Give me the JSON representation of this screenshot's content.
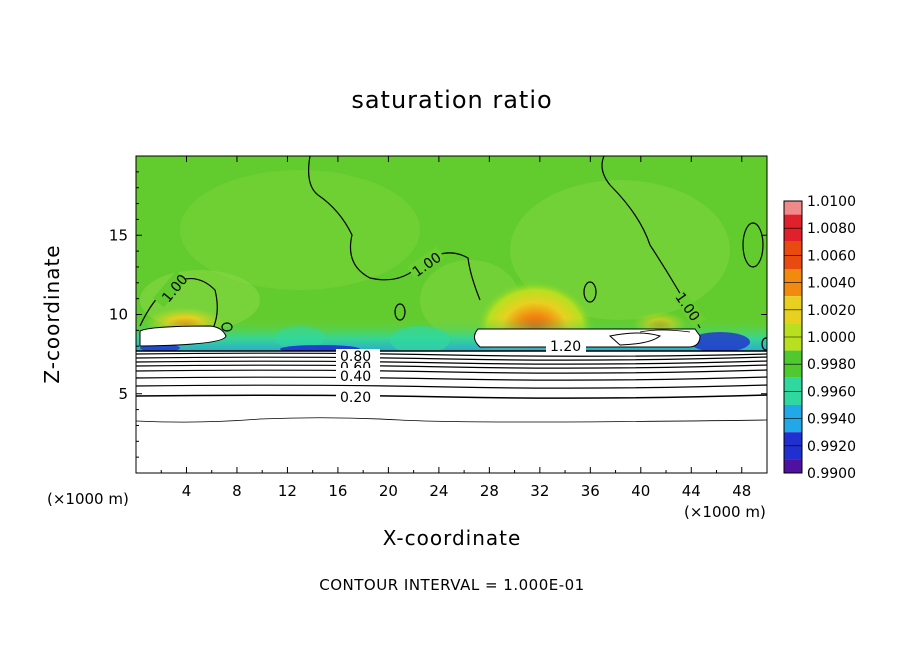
{
  "chart_data": {
    "type": "heatmap",
    "title": "saturation ratio",
    "xlabel": "X-coordinate",
    "ylabel": "Z-coordinate",
    "x_unit_left": "(×1000 m)",
    "x_unit_right": "(×1000 m)",
    "footer": "CONTOUR INTERVAL = 1.000E-01",
    "xlim": [
      0,
      50
    ],
    "ylim": [
      0,
      20
    ],
    "x_ticks": [
      "4",
      "8",
      "12",
      "16",
      "20",
      "24",
      "28",
      "32",
      "36",
      "40",
      "44",
      "48"
    ],
    "y_ticks": [
      "5",
      "10",
      "15"
    ],
    "colorbar": {
      "labels": [
        "1.0100",
        "1.0080",
        "1.0060",
        "1.0040",
        "1.0020",
        "1.0000",
        "0.9980",
        "0.9960",
        "0.9940",
        "0.9920",
        "0.9900"
      ],
      "colors": [
        "#f08a8a",
        "#e0202a",
        "#e84a10",
        "#f28a10",
        "#e8d020",
        "#b8e020",
        "#50c830",
        "#30d8a0",
        "#20a8e8",
        "#2030d0",
        "#5010a0"
      ]
    },
    "contour_labels": [
      "1.00",
      "1.00",
      "1.00",
      "1.20",
      "0.80",
      "0.60",
      "0.40",
      "0.20"
    ]
  }
}
